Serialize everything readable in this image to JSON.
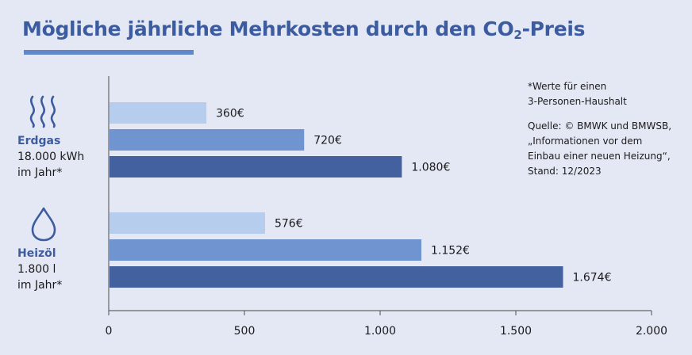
{
  "title": {
    "main": "Mögliche jährliche Mehrkosten durch den CO",
    "subscript": "2",
    "suffix": "-Preis"
  },
  "note": {
    "asterisk_line1": "*Werte für einen",
    "asterisk_line2": "3-Personen-Haushalt",
    "source_line1": "Quelle: © BMWK und BMWSB,",
    "source_line2": "„Informationen vor dem",
    "source_line3": "Einbau einer neuen Heizung“,",
    "source_line4": "Stand: 12/2023"
  },
  "categories": [
    {
      "name": "Erdgas",
      "line2": "18.000 kWh",
      "line3": "im Jahr*",
      "icon": "heat-waves-icon"
    },
    {
      "name": "Heizöl",
      "line2": "1.800 l",
      "line3": "im Jahr*",
      "icon": "oil-drop-icon"
    }
  ],
  "colors": {
    "title": "#3d5ca0",
    "background": "#e4e8f5",
    "bar_light": "#b6cdee",
    "bar_mid": "#6f94cf",
    "bar_dark": "#43609f"
  },
  "chart_data": {
    "type": "bar",
    "orientation": "horizontal",
    "categories": [
      "Erdgas",
      "Heizöl"
    ],
    "values": [
      [
        360,
        720,
        1080
      ],
      [
        576,
        1152,
        1674
      ]
    ],
    "value_labels": [
      [
        "360€",
        "720€",
        "1.080€"
      ],
      [
        "576€",
        "1.152€",
        "1.674€"
      ]
    ],
    "xlim": [
      0,
      2000
    ],
    "xticks": [
      0,
      500,
      1000,
      1500,
      2000
    ],
    "xtick_labels": [
      "0",
      "500",
      "1.000",
      "1.500",
      "2.000"
    ],
    "grid": false
  }
}
